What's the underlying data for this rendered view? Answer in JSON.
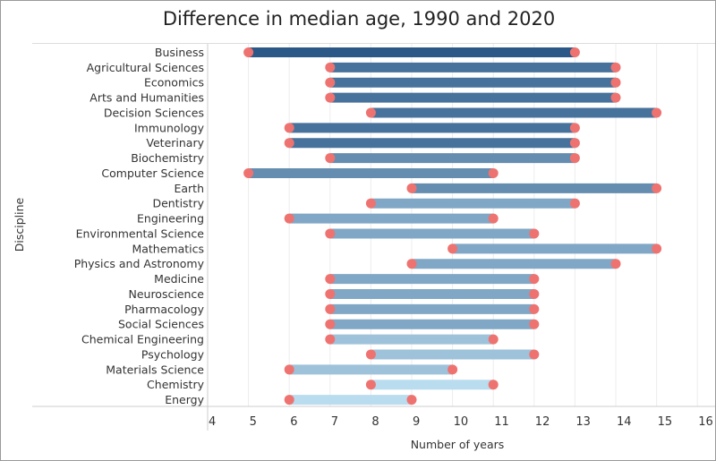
{
  "chart_data": {
    "type": "dumbbell",
    "title": "Difference in median age, 1990 and 2020",
    "xlabel": "Number of years",
    "ylabel": "Discipline",
    "xlim": [
      4,
      16
    ],
    "xticks": [
      "4",
      "5",
      "6",
      "7",
      "8",
      "9",
      "10",
      "11",
      "12",
      "13",
      "14",
      "15",
      "16"
    ],
    "grid": "vertical",
    "dot_color": "#ee7370",
    "bar_color_range": [
      "#b9dcef",
      "#2b5886"
    ],
    "categories": [
      "Business",
      "Agricultural Sciences",
      "Economics",
      "Arts and Humanities",
      "Decision Sciences",
      "Immunology",
      "Veterinary",
      "Biochemistry",
      "Computer Science",
      "Earth",
      "Dentistry",
      "Engineering",
      "Environmental Science",
      "Mathematics",
      "Physics and Astronomy",
      "Medicine",
      "Neuroscience",
      "Pharmacology",
      "Social Sciences",
      "Chemical Engineering",
      "Psychology",
      "Materials Science",
      "Chemistry",
      "Energy"
    ],
    "start": [
      5,
      7,
      7,
      7,
      8,
      6,
      6,
      7,
      5,
      9,
      8,
      6,
      7,
      10,
      9,
      7,
      7,
      7,
      7,
      7,
      8,
      6,
      8,
      6
    ],
    "end": [
      13,
      14,
      14,
      14,
      15,
      13,
      13,
      13,
      11,
      15,
      13,
      11,
      12,
      15,
      14,
      12,
      12,
      12,
      12,
      11,
      12,
      10,
      11,
      9
    ]
  }
}
